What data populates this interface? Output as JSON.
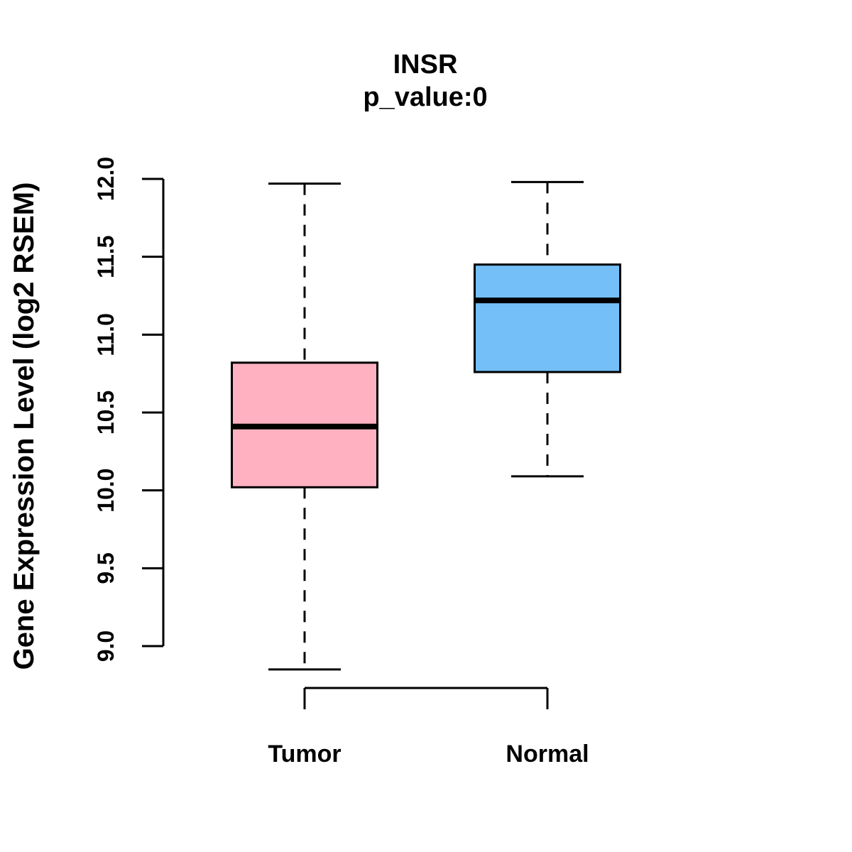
{
  "title": "INSR",
  "subtitle": "p_value:0",
  "chart_data": {
    "type": "boxplot",
    "title": "INSR",
    "subtitle": "p_value:0",
    "ylabel": "Gene Expression Level (log2 RSEM)",
    "xlabel": "",
    "categories": [
      "Tumor",
      "Normal"
    ],
    "ylim": [
      9.0,
      12.0
    ],
    "ytick_labels": [
      "9.0",
      "9.5",
      "10.0",
      "10.5",
      "11.0",
      "11.5",
      "12.0"
    ],
    "ytick_values": [
      9.0,
      9.5,
      10.0,
      10.5,
      11.0,
      11.5,
      12.0
    ],
    "grid": false,
    "legend": "none",
    "whisker_line_style": "dashed",
    "series": [
      {
        "name": "Tumor",
        "lower_whisker": 8.85,
        "q1": 10.02,
        "median": 10.41,
        "q3": 10.82,
        "upper_whisker": 11.97,
        "fill": "#FFB1C1"
      },
      {
        "name": "Normal",
        "lower_whisker": 10.09,
        "q1": 10.76,
        "median": 11.22,
        "q3": 11.45,
        "upper_whisker": 11.98,
        "fill": "#74BFF8"
      }
    ],
    "colors": {
      "stroke": "#000000",
      "background": "#FFFFFF",
      "tumor_fill": "#FFB1C1",
      "normal_fill": "#74BFF8"
    }
  }
}
